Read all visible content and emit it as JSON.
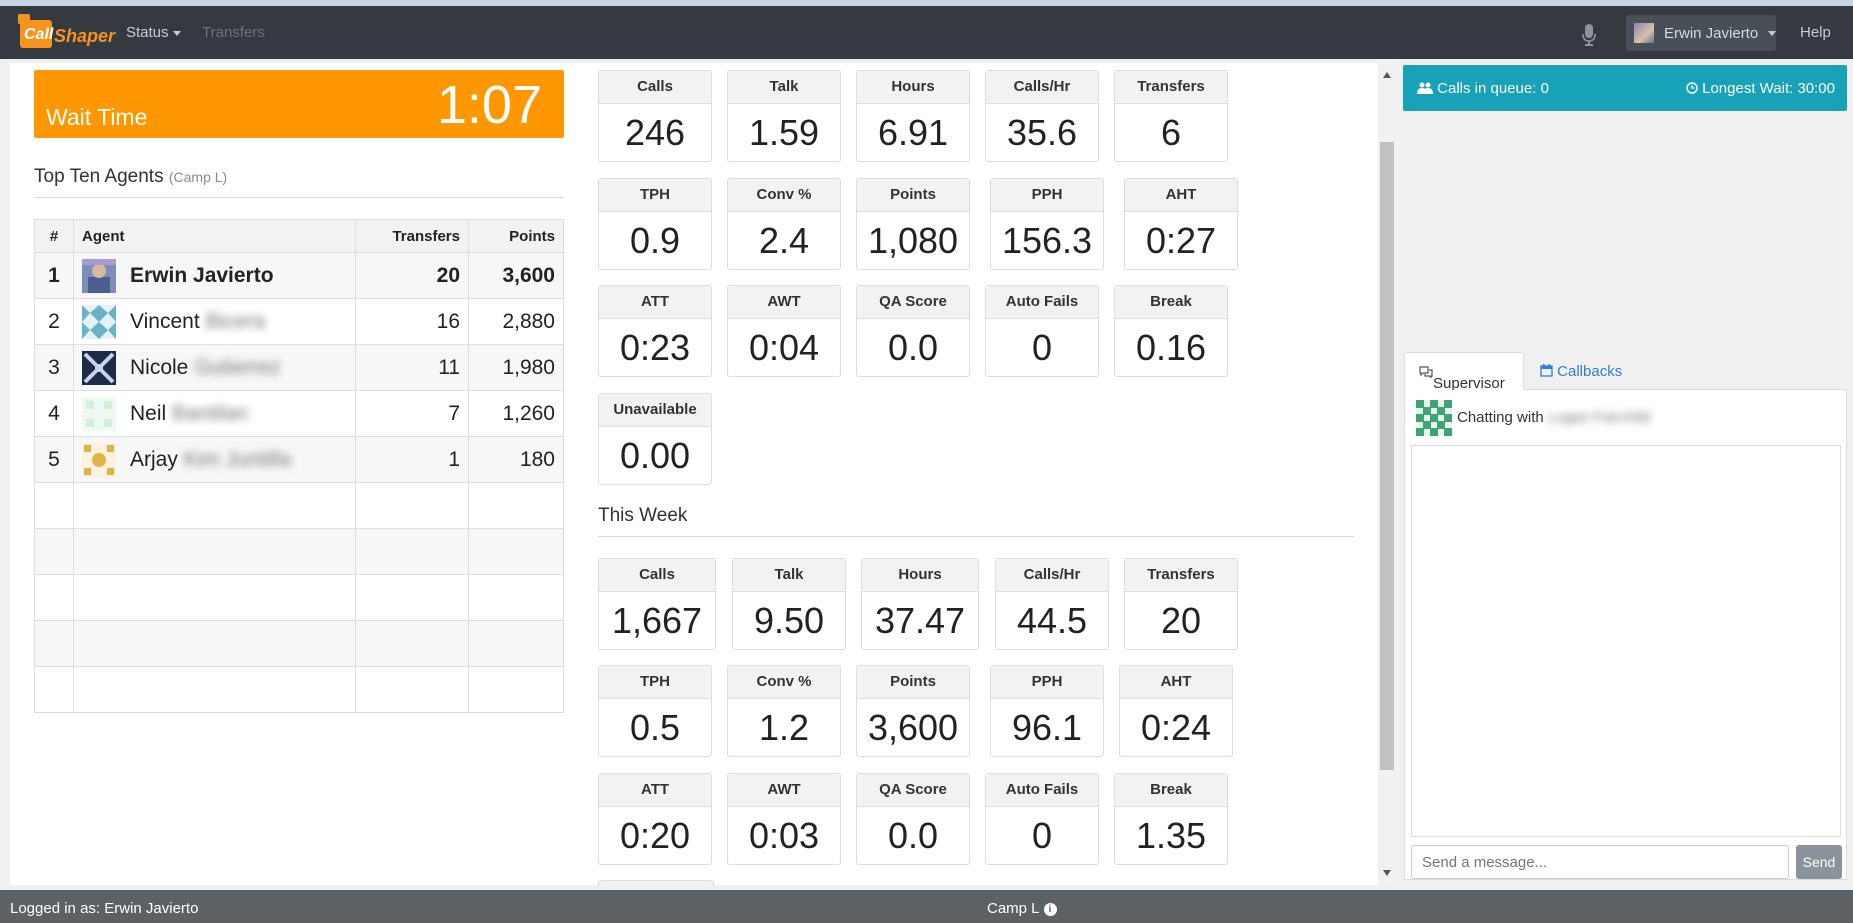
{
  "nav": {
    "logo_text_1": "Call",
    "logo_text_2": "Shaper",
    "status_label": "Status",
    "transfers_label": "Transfers",
    "user_name": "Erwin Javierto",
    "help_label": "Help"
  },
  "wait": {
    "label": "Wait Time",
    "value": "1:07"
  },
  "top_ten": {
    "title": "Top Ten Agents",
    "campaign": "(Camp L)",
    "headers": {
      "num": "#",
      "agent": "Agent",
      "transfers": "Transfers",
      "points": "Points"
    },
    "rows": [
      {
        "num": "1",
        "first": "Erwin Javierto",
        "last": "",
        "transfers": "20",
        "points": "3,600"
      },
      {
        "num": "2",
        "first": "Vincent",
        "last": "Bicera",
        "transfers": "16",
        "points": "2,880"
      },
      {
        "num": "3",
        "first": "Nicole",
        "last": "Gutierrez",
        "transfers": "11",
        "points": "1,980"
      },
      {
        "num": "4",
        "first": "Neil",
        "last": "Bantilan",
        "transfers": "7",
        "points": "1,260"
      },
      {
        "num": "5",
        "first": "Arjay",
        "last": "Kim Juntilla",
        "transfers": "1",
        "points": "180"
      }
    ]
  },
  "today": [
    {
      "label": "Calls",
      "value": "246"
    },
    {
      "label": "Talk",
      "value": "1.59"
    },
    {
      "label": "Hours",
      "value": "6.91"
    },
    {
      "label": "Calls/Hr",
      "value": "35.6"
    },
    {
      "label": "Transfers",
      "value": "6"
    },
    {
      "label": "TPH",
      "value": "0.9"
    },
    {
      "label": "Conv %",
      "value": "2.4"
    },
    {
      "label": "Points",
      "value": "1,080"
    },
    {
      "label": "PPH",
      "value": "156.3"
    },
    {
      "label": "AHT",
      "value": "0:27"
    },
    {
      "label": "ATT",
      "value": "0:23"
    },
    {
      "label": "AWT",
      "value": "0:04"
    },
    {
      "label": "QA Score",
      "value": "0.0"
    },
    {
      "label": "Auto Fails",
      "value": "0"
    },
    {
      "label": "Break",
      "value": "0.16"
    },
    {
      "label": "Unavailable",
      "value": "0.00"
    }
  ],
  "this_week": {
    "title": "This Week",
    "stats": [
      {
        "label": "Calls",
        "value": "1,667"
      },
      {
        "label": "Talk",
        "value": "9.50"
      },
      {
        "label": "Hours",
        "value": "37.47"
      },
      {
        "label": "Calls/Hr",
        "value": "44.5"
      },
      {
        "label": "Transfers",
        "value": "20"
      },
      {
        "label": "TPH",
        "value": "0.5"
      },
      {
        "label": "Conv %",
        "value": "1.2"
      },
      {
        "label": "Points",
        "value": "3,600"
      },
      {
        "label": "PPH",
        "value": "96.1"
      },
      {
        "label": "AHT",
        "value": "0:24"
      },
      {
        "label": "ATT",
        "value": "0:20"
      },
      {
        "label": "AWT",
        "value": "0:03"
      },
      {
        "label": "QA Score",
        "value": "0.0"
      },
      {
        "label": "Auto Fails",
        "value": "0"
      },
      {
        "label": "Break",
        "value": "1.35"
      }
    ]
  },
  "queue": {
    "calls_label": "Calls in queue: 0",
    "longest_label": "Longest Wait: 30:00",
    "color": "#17a2b8"
  },
  "chat": {
    "tab_supervisor": "Supervisor",
    "tab_callbacks": "Callbacks",
    "chatting_prefix": "Chatting with",
    "chatting_name": "Logan Fairchild",
    "input_placeholder": "Send a message...",
    "send_label": "Send"
  },
  "footer": {
    "logged_in": "Logged in as: Erwin Javierto",
    "campaign": "Camp L"
  },
  "colors": {
    "wait_bg": "#ff9800",
    "navbar": "#343a40",
    "footer": "#5c6166"
  }
}
